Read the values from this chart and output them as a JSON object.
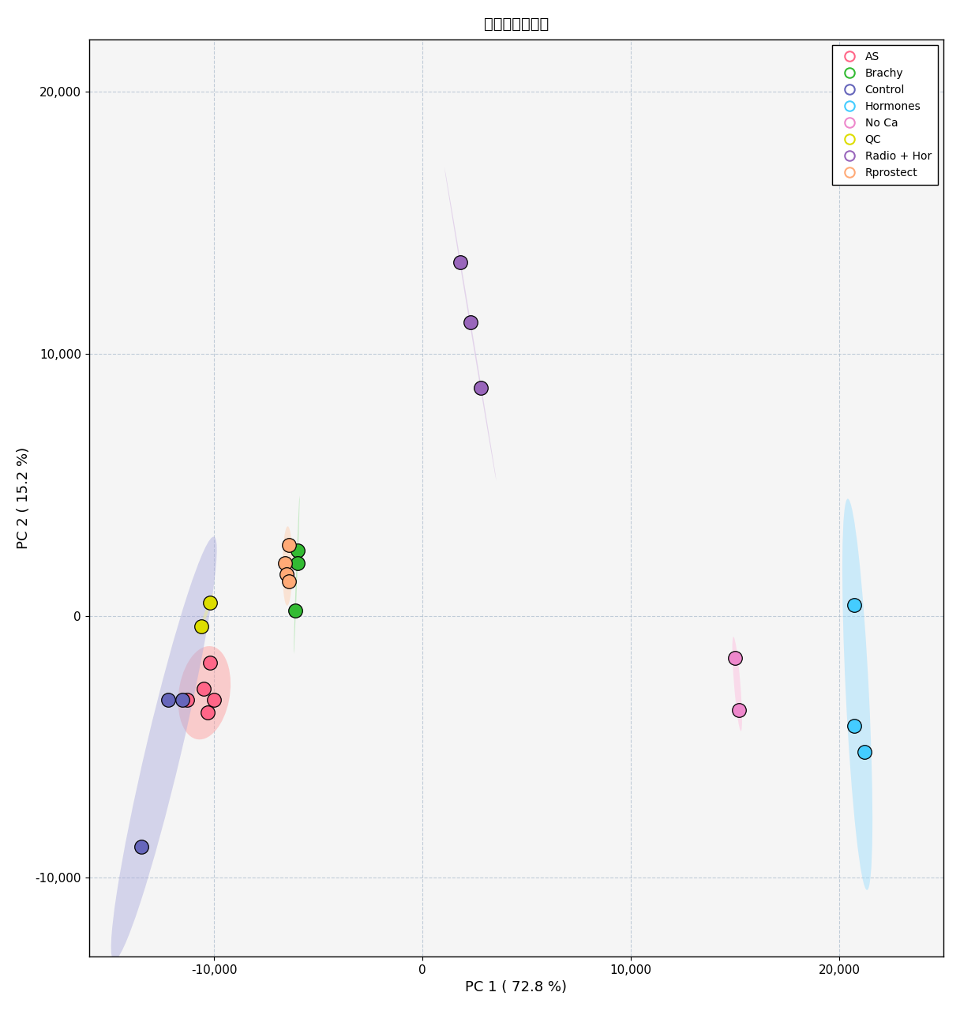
{
  "title": "スコアプロット",
  "xlabel": "PC 1 ( 72.8 %)",
  "ylabel": "PC 2 ( 15.2 %)",
  "xlim": [
    -16000,
    25000
  ],
  "ylim": [
    -13000,
    22000
  ],
  "xticks": [
    -10000,
    0,
    10000,
    20000
  ],
  "yticks": [
    -10000,
    0,
    10000,
    20000
  ],
  "background": "#f5f5f5",
  "groups": {
    "AS": {
      "color": "#FF6688",
      "ellipse_color": "#FF9999",
      "points": [
        [
          -10200,
          -1800
        ],
        [
          -10500,
          -2800
        ],
        [
          -10000,
          -3200
        ],
        [
          -10300,
          -3700
        ],
        [
          -11300,
          -3200
        ]
      ]
    },
    "Brachy": {
      "color": "#33BB33",
      "ellipse_color": "#88DD88",
      "points": [
        [
          -6000,
          2500
        ],
        [
          -6000,
          2000
        ],
        [
          -6100,
          200
        ]
      ]
    },
    "Control": {
      "color": "#6666BB",
      "ellipse_color": "#AAAADD",
      "points": [
        [
          -12200,
          -3200
        ],
        [
          -11500,
          -3200
        ],
        [
          -13500,
          -8800
        ]
      ]
    },
    "Hormones": {
      "color": "#44CCFF",
      "ellipse_color": "#99DDFF",
      "points": [
        [
          20700,
          400
        ],
        [
          20700,
          -4200
        ],
        [
          21200,
          -5200
        ]
      ]
    },
    "No Ca": {
      "color": "#EE88CC",
      "ellipse_color": "#FFBBDD",
      "points": [
        [
          15000,
          -1600
        ],
        [
          15200,
          -3600
        ]
      ]
    },
    "QC": {
      "color": "#DDDD00",
      "ellipse_color": "#EEEE88",
      "points": [
        [
          -10200,
          500
        ],
        [
          -10600,
          -400
        ]
      ]
    },
    "Radio + Hor": {
      "color": "#9966BB",
      "ellipse_color": "#CCAADD",
      "points": [
        [
          1800,
          13500
        ],
        [
          2300,
          11200
        ],
        [
          2800,
          8700
        ]
      ]
    },
    "Rprostect": {
      "color": "#FFAA77",
      "ellipse_color": "#FFCCAA",
      "points": [
        [
          -6400,
          2700
        ],
        [
          -6600,
          2000
        ],
        [
          -6500,
          1600
        ],
        [
          -6400,
          1300
        ]
      ]
    }
  }
}
